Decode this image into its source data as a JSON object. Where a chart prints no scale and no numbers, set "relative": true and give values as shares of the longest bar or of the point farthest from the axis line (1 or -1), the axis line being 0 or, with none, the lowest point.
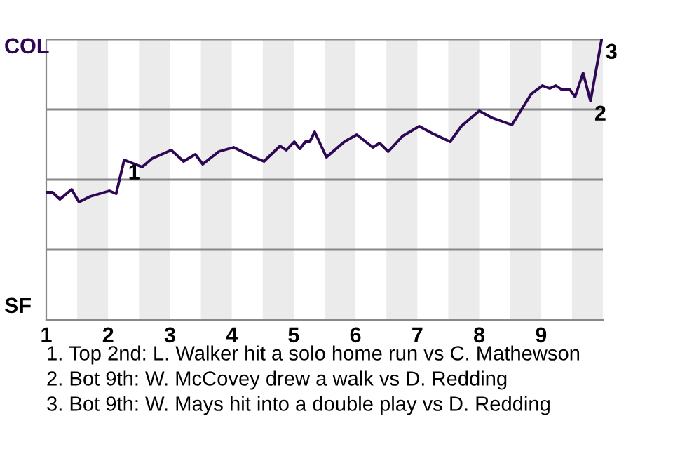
{
  "chart_data": {
    "type": "line",
    "relative": true,
    "x": [
      1.0,
      1.1,
      1.22,
      1.41,
      1.53,
      1.71,
      2.02,
      2.13,
      2.26,
      2.55,
      2.71,
      3.02,
      3.22,
      3.41,
      3.53,
      3.79,
      4.03,
      4.35,
      4.52,
      4.78,
      4.88,
      5.01,
      5.1,
      5.19,
      5.26,
      5.34,
      5.53,
      5.82,
      6.02,
      6.28,
      6.39,
      6.53,
      6.76,
      7.03,
      7.24,
      7.53,
      7.71,
      8.0,
      8.21,
      8.53,
      8.84,
      9.02,
      9.14,
      9.24,
      9.34,
      9.47,
      9.55,
      9.68,
      9.8,
      9.98
    ],
    "series": [
      {
        "color": "#2e0854",
        "values": [
          0.455,
          0.455,
          0.43,
          0.465,
          0.42,
          0.44,
          0.46,
          0.45,
          0.57,
          0.545,
          0.575,
          0.605,
          0.565,
          0.59,
          0.555,
          0.6,
          0.615,
          0.58,
          0.565,
          0.62,
          0.605,
          0.635,
          0.61,
          0.635,
          0.635,
          0.67,
          0.58,
          0.635,
          0.66,
          0.615,
          0.63,
          0.6,
          0.655,
          0.69,
          0.665,
          0.635,
          0.69,
          0.745,
          0.72,
          0.695,
          0.805,
          0.835,
          0.825,
          0.835,
          0.82,
          0.82,
          0.795,
          0.88,
          0.78,
          1
        ]
      }
    ],
    "xlim": [
      1,
      10
    ],
    "xticks": [
      1,
      2,
      3,
      4,
      5,
      6,
      7,
      8,
      9
    ],
    "grid": "y",
    "bands": [
      {
        "axis": "x",
        "from": 1.5,
        "to": 2,
        "color": "#ebebeb"
      },
      {
        "axis": "x",
        "from": 2.5,
        "to": 3,
        "color": "#ebebeb"
      },
      {
        "axis": "x",
        "from": 3.5,
        "to": 4,
        "color": "#ebebeb"
      },
      {
        "axis": "x",
        "from": 4.5,
        "to": 5,
        "color": "#ebebeb"
      },
      {
        "axis": "x",
        "from": 5.5,
        "to": 6,
        "color": "#ebebeb"
      },
      {
        "axis": "x",
        "from": 6.5,
        "to": 7,
        "color": "#ebebeb"
      },
      {
        "axis": "x",
        "from": 7.5,
        "to": 8,
        "color": "#ebebeb"
      },
      {
        "axis": "x",
        "from": 8.5,
        "to": 9,
        "color": "#ebebeb"
      },
      {
        "axis": "x",
        "from": 9.5,
        "to": 10,
        "color": "#ebebeb"
      }
    ],
    "annotations": [
      "COL",
      "SF",
      {
        "text": "1",
        "x": 2.26,
        "y": 0.57
      },
      {
        "text": "2",
        "x": 9.8,
        "y": 0.78
      },
      {
        "text": "3",
        "x": 9.98,
        "y": 1
      },
      "1. Top 2nd: L. Walker hit a solo home run vs C. Mathewson",
      "2. Bot 9th: W. McCovey drew a walk vs D. Redding",
      "3. Bot 9th: W. Mays hit into a double play vs D. Redding"
    ]
  }
}
